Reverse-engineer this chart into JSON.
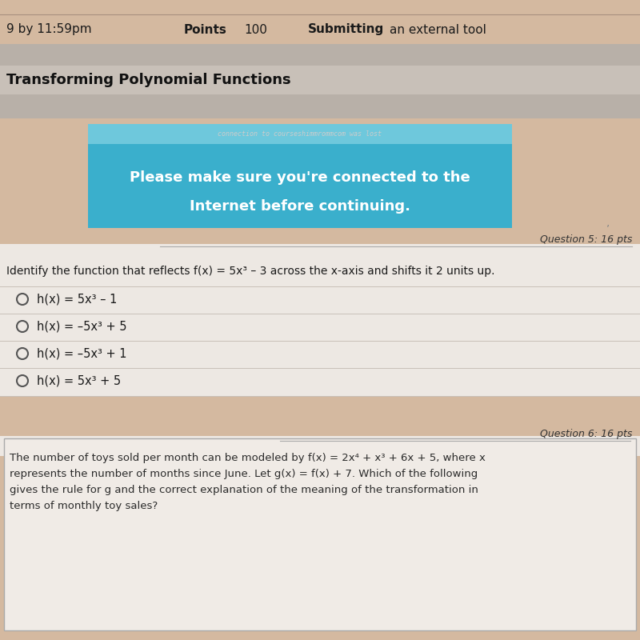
{
  "bg_tan": "#d4b9a0",
  "bg_gray": "#b8b0a8",
  "bg_title": "#c8c0b8",
  "bg_white_box": "#ede8e3",
  "bg_q6_box": "#f0ebe6",
  "cyan_top": "#5abfd8",
  "cyan_main": "#3aafcc",
  "white": "#ffffff",
  "header_line1": "9 by 11:59pm",
  "header_pts_label": "Points",
  "header_pts_value": "100",
  "header_sub_label": "Submitting",
  "header_sub_value": "an external tool",
  "section_title": "Transforming Polynomial Functions",
  "cyan_top_text": "connection to courseshimmrommcom was lost",
  "cyan_main_line1": "Please make sure you're connected to the",
  "cyan_main_line2": "Internet before continuing.",
  "q5_label": "Question 5: 16 pts",
  "q5_question": "Identify the function that reflects f(x) = 5x³ – 3 across the x-axis and shifts it 2 units up.",
  "q5_choices": [
    "h(x) = 5x³ – 1",
    "h(x) = –5x³ + 5",
    "h(x) = –5x³ + 1",
    "h(x) = 5x³ + 5"
  ],
  "q6_label": "Question 6: 16 pts",
  "q6_text": "The number of toys sold per month can be modeled by f(x) = 2x⁴ + x³ + 6x + 5, where x\nrepresents the number of months since June. Let g(x) = f(x) + 7. Which of the following\ngives the rule for g and the correct explanation of the meaning of the transformation in\nterms of monthly toy sales?"
}
